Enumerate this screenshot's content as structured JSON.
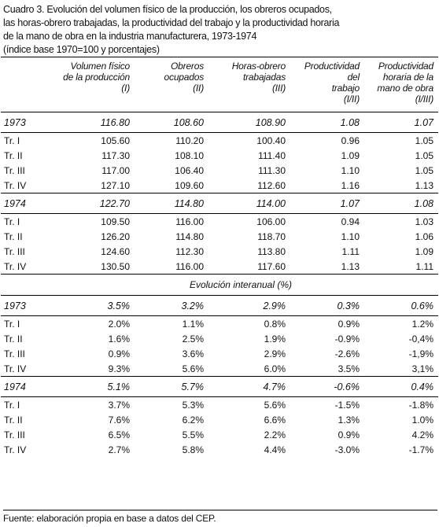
{
  "title": {
    "lines": [
      "Cuadro 3. Evolución del volumen físico de la producción, los obreros ocupados,",
      "las horas-obrero trabajadas, la productividad del trabajo y la productividad horaria",
      "de la mano de obra en la industria manufacturera, 1973-1974",
      "(índice base 1970=100 y porcentajes)"
    ]
  },
  "table": {
    "columns": [
      [
        "Volumen físico",
        "de la producción",
        "(I)"
      ],
      [
        "Obreros",
        "ocupados",
        "(II)"
      ],
      [
        "Horas-obrero",
        "trabajadas",
        "(III)"
      ],
      [
        "Productividad del",
        "trabajo",
        "(I/II)"
      ],
      [
        "Productividad",
        "horaria de la",
        "mano de obra",
        "(I/III)"
      ]
    ],
    "index_groups": [
      {
        "year": [
          "1973",
          "116.80",
          "108.60",
          "108.90",
          "1.08",
          "1.07"
        ],
        "quarters": [
          [
            "Tr. I",
            "105.60",
            "110.20",
            "100.40",
            "0.96",
            "1.05"
          ],
          [
            "Tr. II",
            "117.30",
            "108.10",
            "111.40",
            "1.09",
            "1.05"
          ],
          [
            "Tr. III",
            "117.00",
            "106.40",
            "111.30",
            "1.10",
            "1.05"
          ],
          [
            "Tr. IV",
            "127.10",
            "109.60",
            "112.60",
            "1.16",
            "1.13"
          ]
        ]
      },
      {
        "year": [
          "1974",
          "122.70",
          "114.80",
          "114.00",
          "1.07",
          "1.08"
        ],
        "quarters": [
          [
            "Tr. I",
            "109.50",
            "116.00",
            "106.00",
            "0.94",
            "1.03"
          ],
          [
            "Tr. II",
            "126.20",
            "114.80",
            "118.70",
            "1.10",
            "1.06"
          ],
          [
            "Tr. III",
            "124.60",
            "112.30",
            "113.80",
            "1.11",
            "1.09"
          ],
          [
            "Tr. IV",
            "130.50",
            "116.00",
            "117.60",
            "1.13",
            "1.11"
          ]
        ]
      }
    ],
    "section": "Evolución interanual (%)",
    "percent_groups": [
      {
        "year": [
          "1973",
          "3.5%",
          "3.2%",
          "2.9%",
          "0.3%",
          "0.6%"
        ],
        "quarters": [
          [
            "Tr. I",
            "2.0%",
            "1.1%",
            "0.8%",
            "0.9%",
            "1.2%"
          ],
          [
            "Tr. II",
            "1.6%",
            "2.5%",
            "1.9%",
            "-0.9%",
            "-0,4%"
          ],
          [
            "Tr. III",
            "0.9%",
            "3.6%",
            "2.9%",
            "-2.6%",
            "-1,9%"
          ],
          [
            "Tr. IV",
            "9.3%",
            "5.6%",
            "6.0%",
            "3.5%",
            "3,1%"
          ]
        ]
      },
      {
        "year": [
          "1974",
          "5.1%",
          "5.7%",
          "4.7%",
          "-0.6%",
          "0.4%"
        ],
        "quarters": [
          [
            "Tr. I",
            "3.7%",
            "5.3%",
            "5.6%",
            "-1.5%",
            "-1.8%"
          ],
          [
            "Tr. II",
            "7.6%",
            "6.2%",
            "6.6%",
            "1.3%",
            "1.0%"
          ],
          [
            "Tr. III",
            "6.5%",
            "5.5%",
            "2.2%",
            "0.9%",
            "4.2%"
          ],
          [
            "Tr. IV",
            "2.7%",
            "5.8%",
            "4.4%",
            "-3.0%",
            "-1.7%"
          ]
        ]
      }
    ]
  },
  "footer": "Fuente: elaboración propia en base a datos del CEP."
}
